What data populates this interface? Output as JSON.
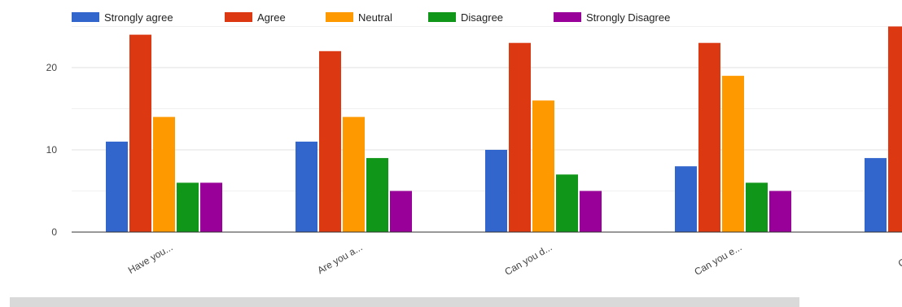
{
  "chart_data": {
    "type": "bar",
    "categories": [
      "Have you...",
      "Are you a...",
      "Can you d...",
      "Can you e...",
      "Can you"
    ],
    "series": [
      {
        "name": "Strongly agree",
        "color": "#3366cc",
        "values": [
          11,
          11,
          10,
          8,
          9
        ]
      },
      {
        "name": "Agree",
        "color": "#dc3912",
        "values": [
          24,
          22,
          23,
          23,
          25
        ]
      },
      {
        "name": "Neutral",
        "color": "#ff9900",
        "values": [
          14,
          14,
          16,
          19,
          null
        ]
      },
      {
        "name": "Disagree",
        "color": "#109618",
        "values": [
          6,
          9,
          7,
          6,
          null
        ]
      },
      {
        "name": "Strongly Disagree",
        "color": "#990099",
        "values": [
          6,
          5,
          5,
          5,
          null
        ]
      }
    ],
    "yticks": [
      "0",
      "10",
      "20"
    ],
    "ylim": [
      0,
      25
    ],
    "grid": true,
    "legend": "top",
    "xlabel": "",
    "ylabel": ""
  }
}
